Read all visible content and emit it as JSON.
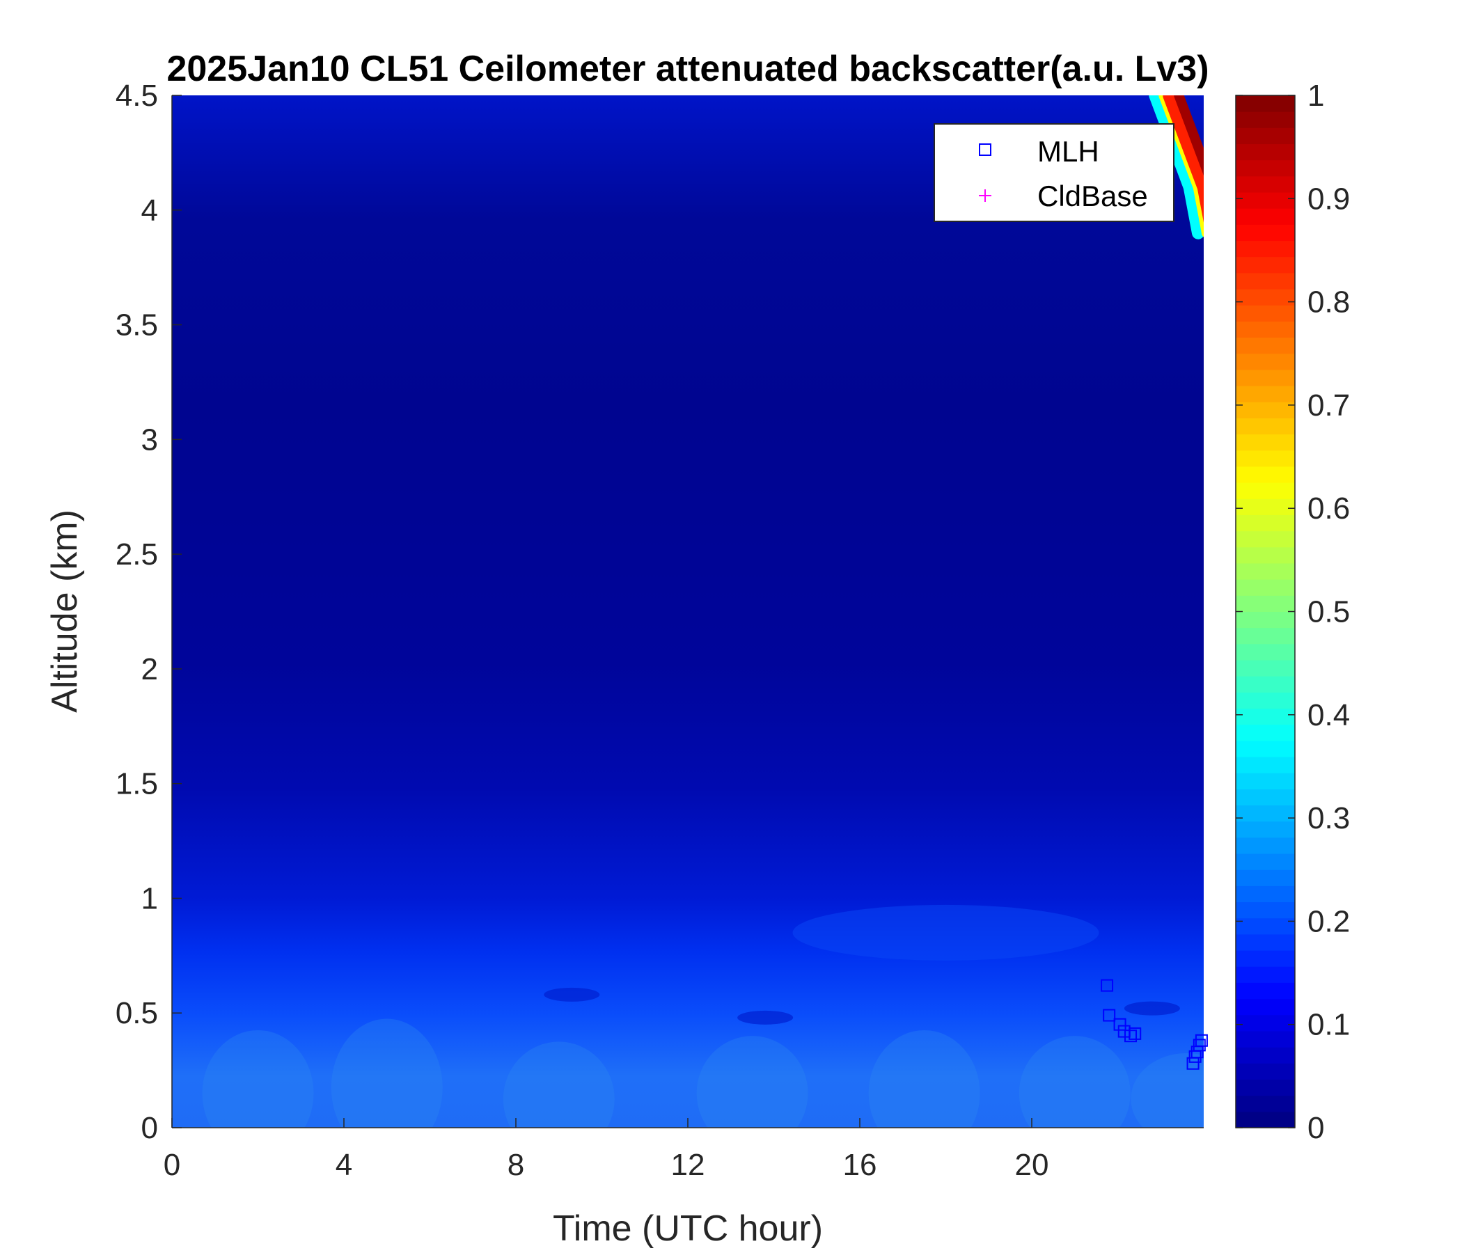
{
  "chart_data": {
    "type": "heatmap",
    "title": "2025Jan10 CL51 Ceilometer attenuated backscatter(a.u. Lv3)",
    "xlabel": "Time (UTC hour)",
    "ylabel": "Altitude (km)",
    "xlim": [
      0,
      24
    ],
    "ylim": [
      0,
      4.5
    ],
    "x_ticks": [
      0,
      4,
      8,
      12,
      16,
      20
    ],
    "x_tick_labels": [
      "0",
      "4",
      "8",
      "12",
      "16",
      "20"
    ],
    "y_ticks": [
      0,
      0.5,
      1,
      1.5,
      2,
      2.5,
      3,
      3.5,
      4,
      4.5
    ],
    "y_tick_labels": [
      "0",
      "0.5",
      "1",
      "1.5",
      "2",
      "2.5",
      "3",
      "3.5",
      "4",
      "4.5"
    ],
    "colorbar": {
      "colormap": "jet",
      "range": [
        0,
        1
      ],
      "ticks": [
        0,
        0.1,
        0.2,
        0.3,
        0.4,
        0.5,
        0.6,
        0.7,
        0.8,
        0.9,
        1
      ],
      "tick_labels": [
        "0",
        "0.1",
        "0.2",
        "0.3",
        "0.4",
        "0.5",
        "0.6",
        "0.7",
        "0.8",
        "0.9",
        "1"
      ]
    },
    "legend": {
      "placement": "top-right",
      "entries": [
        {
          "name": "MLH",
          "marker": "square",
          "color": "#0000ff"
        },
        {
          "name": "CldBase",
          "marker": "plus",
          "color": "#ff00ff"
        }
      ]
    },
    "series": [
      {
        "name": "MLH",
        "marker": "square",
        "color": "#0000ff",
        "points": [
          {
            "x": 21.75,
            "y": 0.62
          },
          {
            "x": 21.8,
            "y": 0.49
          },
          {
            "x": 22.05,
            "y": 0.45
          },
          {
            "x": 22.15,
            "y": 0.42
          },
          {
            "x": 22.3,
            "y": 0.4
          },
          {
            "x": 22.4,
            "y": 0.41
          },
          {
            "x": 23.75,
            "y": 0.28
          },
          {
            "x": 23.8,
            "y": 0.31
          },
          {
            "x": 23.85,
            "y": 0.33
          },
          {
            "x": 23.9,
            "y": 0.36
          },
          {
            "x": 23.95,
            "y": 0.38
          }
        ]
      }
    ],
    "backscatter_field": {
      "description_values": "approximate backscatter level (0-1) vs altitude (km) per time segment",
      "altitude_profile": [
        {
          "alt": 0.0,
          "value": 0.26
        },
        {
          "alt": 0.25,
          "value": 0.25
        },
        {
          "alt": 0.5,
          "value": 0.2
        },
        {
          "alt": 0.75,
          "value": 0.14
        },
        {
          "alt": 1.0,
          "value": 0.1
        },
        {
          "alt": 1.25,
          "value": 0.07
        },
        {
          "alt": 1.5,
          "value": 0.05
        },
        {
          "alt": 2.0,
          "value": 0.03
        },
        {
          "alt": 3.0,
          "value": 0.02
        },
        {
          "alt": 4.0,
          "value": 0.03
        },
        {
          "alt": 4.5,
          "value": 0.05
        }
      ],
      "high_feature": [
        {
          "x": 23.0,
          "y": 4.5,
          "value": 1.0
        },
        {
          "x": 23.4,
          "y": 4.3,
          "value": 0.9
        },
        {
          "x": 23.8,
          "y": 4.1,
          "value": 0.85
        },
        {
          "x": 24.0,
          "y": 3.9,
          "value": 0.8
        }
      ]
    },
    "grid": false
  }
}
